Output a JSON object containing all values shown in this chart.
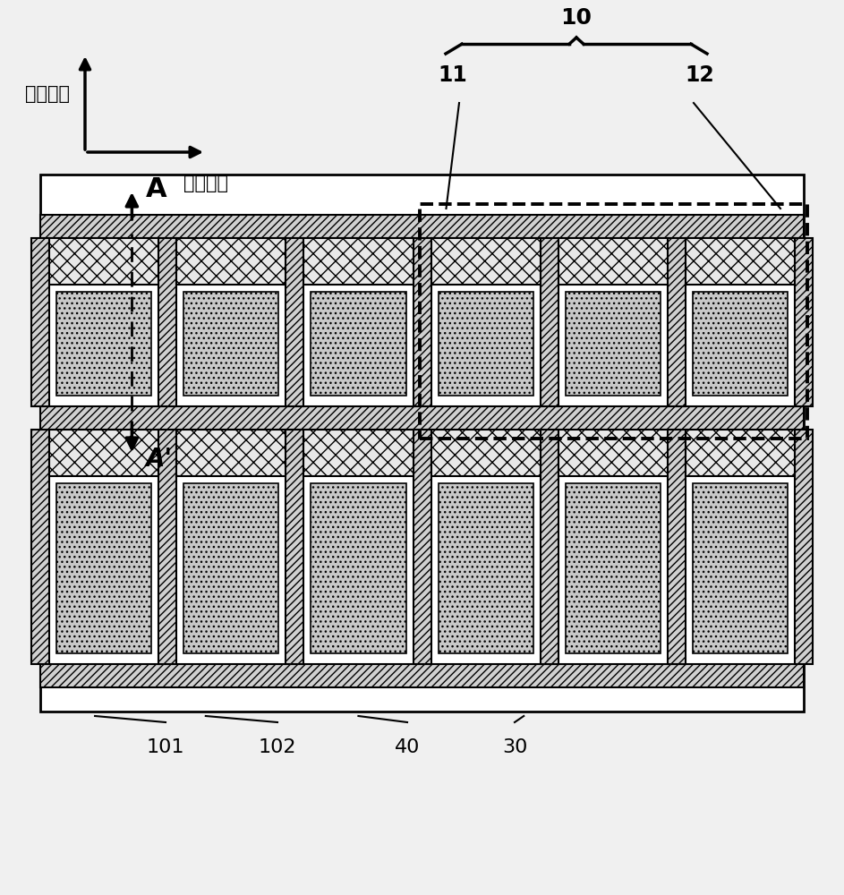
{
  "bg_color": "#f0f0f0",
  "panel_bg": "#ffffff",
  "hatch_diag_color": "#888888",
  "hatch_cross_color": "#aaaaaa",
  "hatch_dot_color": "#bbbbbb",
  "label_10": "10",
  "label_11": "11",
  "label_12": "12",
  "label_A": "A",
  "label_Aprime": "A'",
  "label_101": "101",
  "label_102": "102",
  "label_40": "40",
  "label_30": "30",
  "label_dir1": "第一方向",
  "label_dir2": "第二方向",
  "n_cols": 6,
  "col_groups": [
    3,
    3
  ],
  "fig_width": 9.43,
  "fig_height": 10.0
}
